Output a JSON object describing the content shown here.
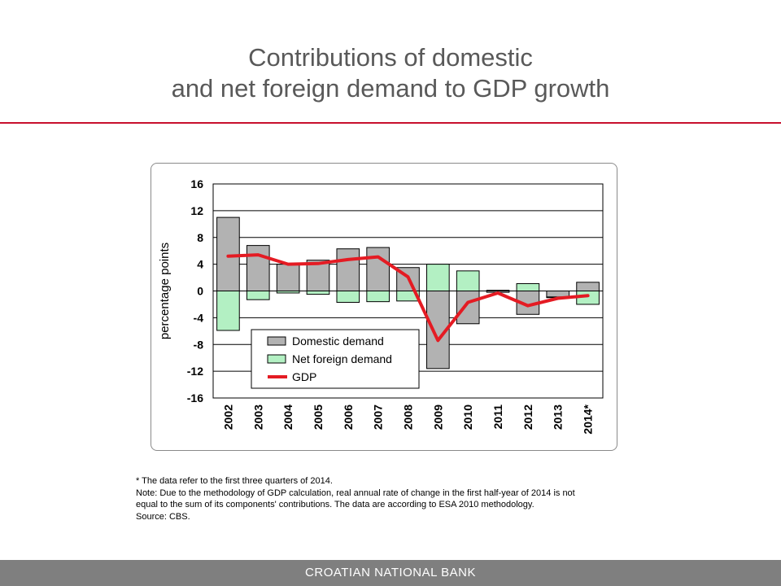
{
  "slide": {
    "title_line1": "Contributions of domestic",
    "title_line2": "and net foreign demand to GDP growth",
    "accent_color": "#c8102e"
  },
  "notes": {
    "footnote": "* The data refer to the first three quarters of 2014.",
    "note_line1": "Note: Due to the methodology of GDP calculation, real annual rate of change in the first half-year of 2014 is not",
    "note_line2": "equal to the sum of its components' contributions. The data are according to ESA 2010 methodology.",
    "source": "Source: CBS."
  },
  "footer": {
    "text": "CROATIAN NATIONAL BANK"
  },
  "chart_data": {
    "type": "bar",
    "stacked": true,
    "categories": [
      "2002",
      "2003",
      "2004",
      "2005",
      "2006",
      "2007",
      "2008",
      "2009",
      "2010",
      "2011",
      "2012",
      "2013",
      "2014*"
    ],
    "series": [
      {
        "name": "Domestic demand",
        "kind": "bar",
        "color": "#b2b2b2",
        "values": [
          11.0,
          6.8,
          4.0,
          4.6,
          6.3,
          6.5,
          3.5,
          -11.6,
          -4.9,
          -0.2,
          -3.5,
          -0.9,
          1.3
        ]
      },
      {
        "name": "Net foreign demand",
        "kind": "bar",
        "color": "#b3f0c3",
        "values": [
          -5.9,
          -1.3,
          -0.3,
          -0.5,
          -1.7,
          -1.6,
          -1.5,
          4.0,
          3.0,
          0.1,
          1.1,
          -0.1,
          -2.0
        ]
      },
      {
        "name": "GDP",
        "kind": "line",
        "color": "#e41b23",
        "values": [
          5.2,
          5.4,
          4.0,
          4.1,
          4.7,
          5.1,
          2.1,
          -7.4,
          -1.7,
          -0.3,
          -2.2,
          -1.1,
          -0.7
        ]
      }
    ],
    "ylabel": "percentage points",
    "ylim": [
      -16,
      16
    ],
    "yticks": [
      "16",
      "12",
      "8",
      "4",
      "0",
      "-4",
      "-8",
      "-12",
      "-16"
    ],
    "grid": true,
    "legend": "bottom-left"
  }
}
